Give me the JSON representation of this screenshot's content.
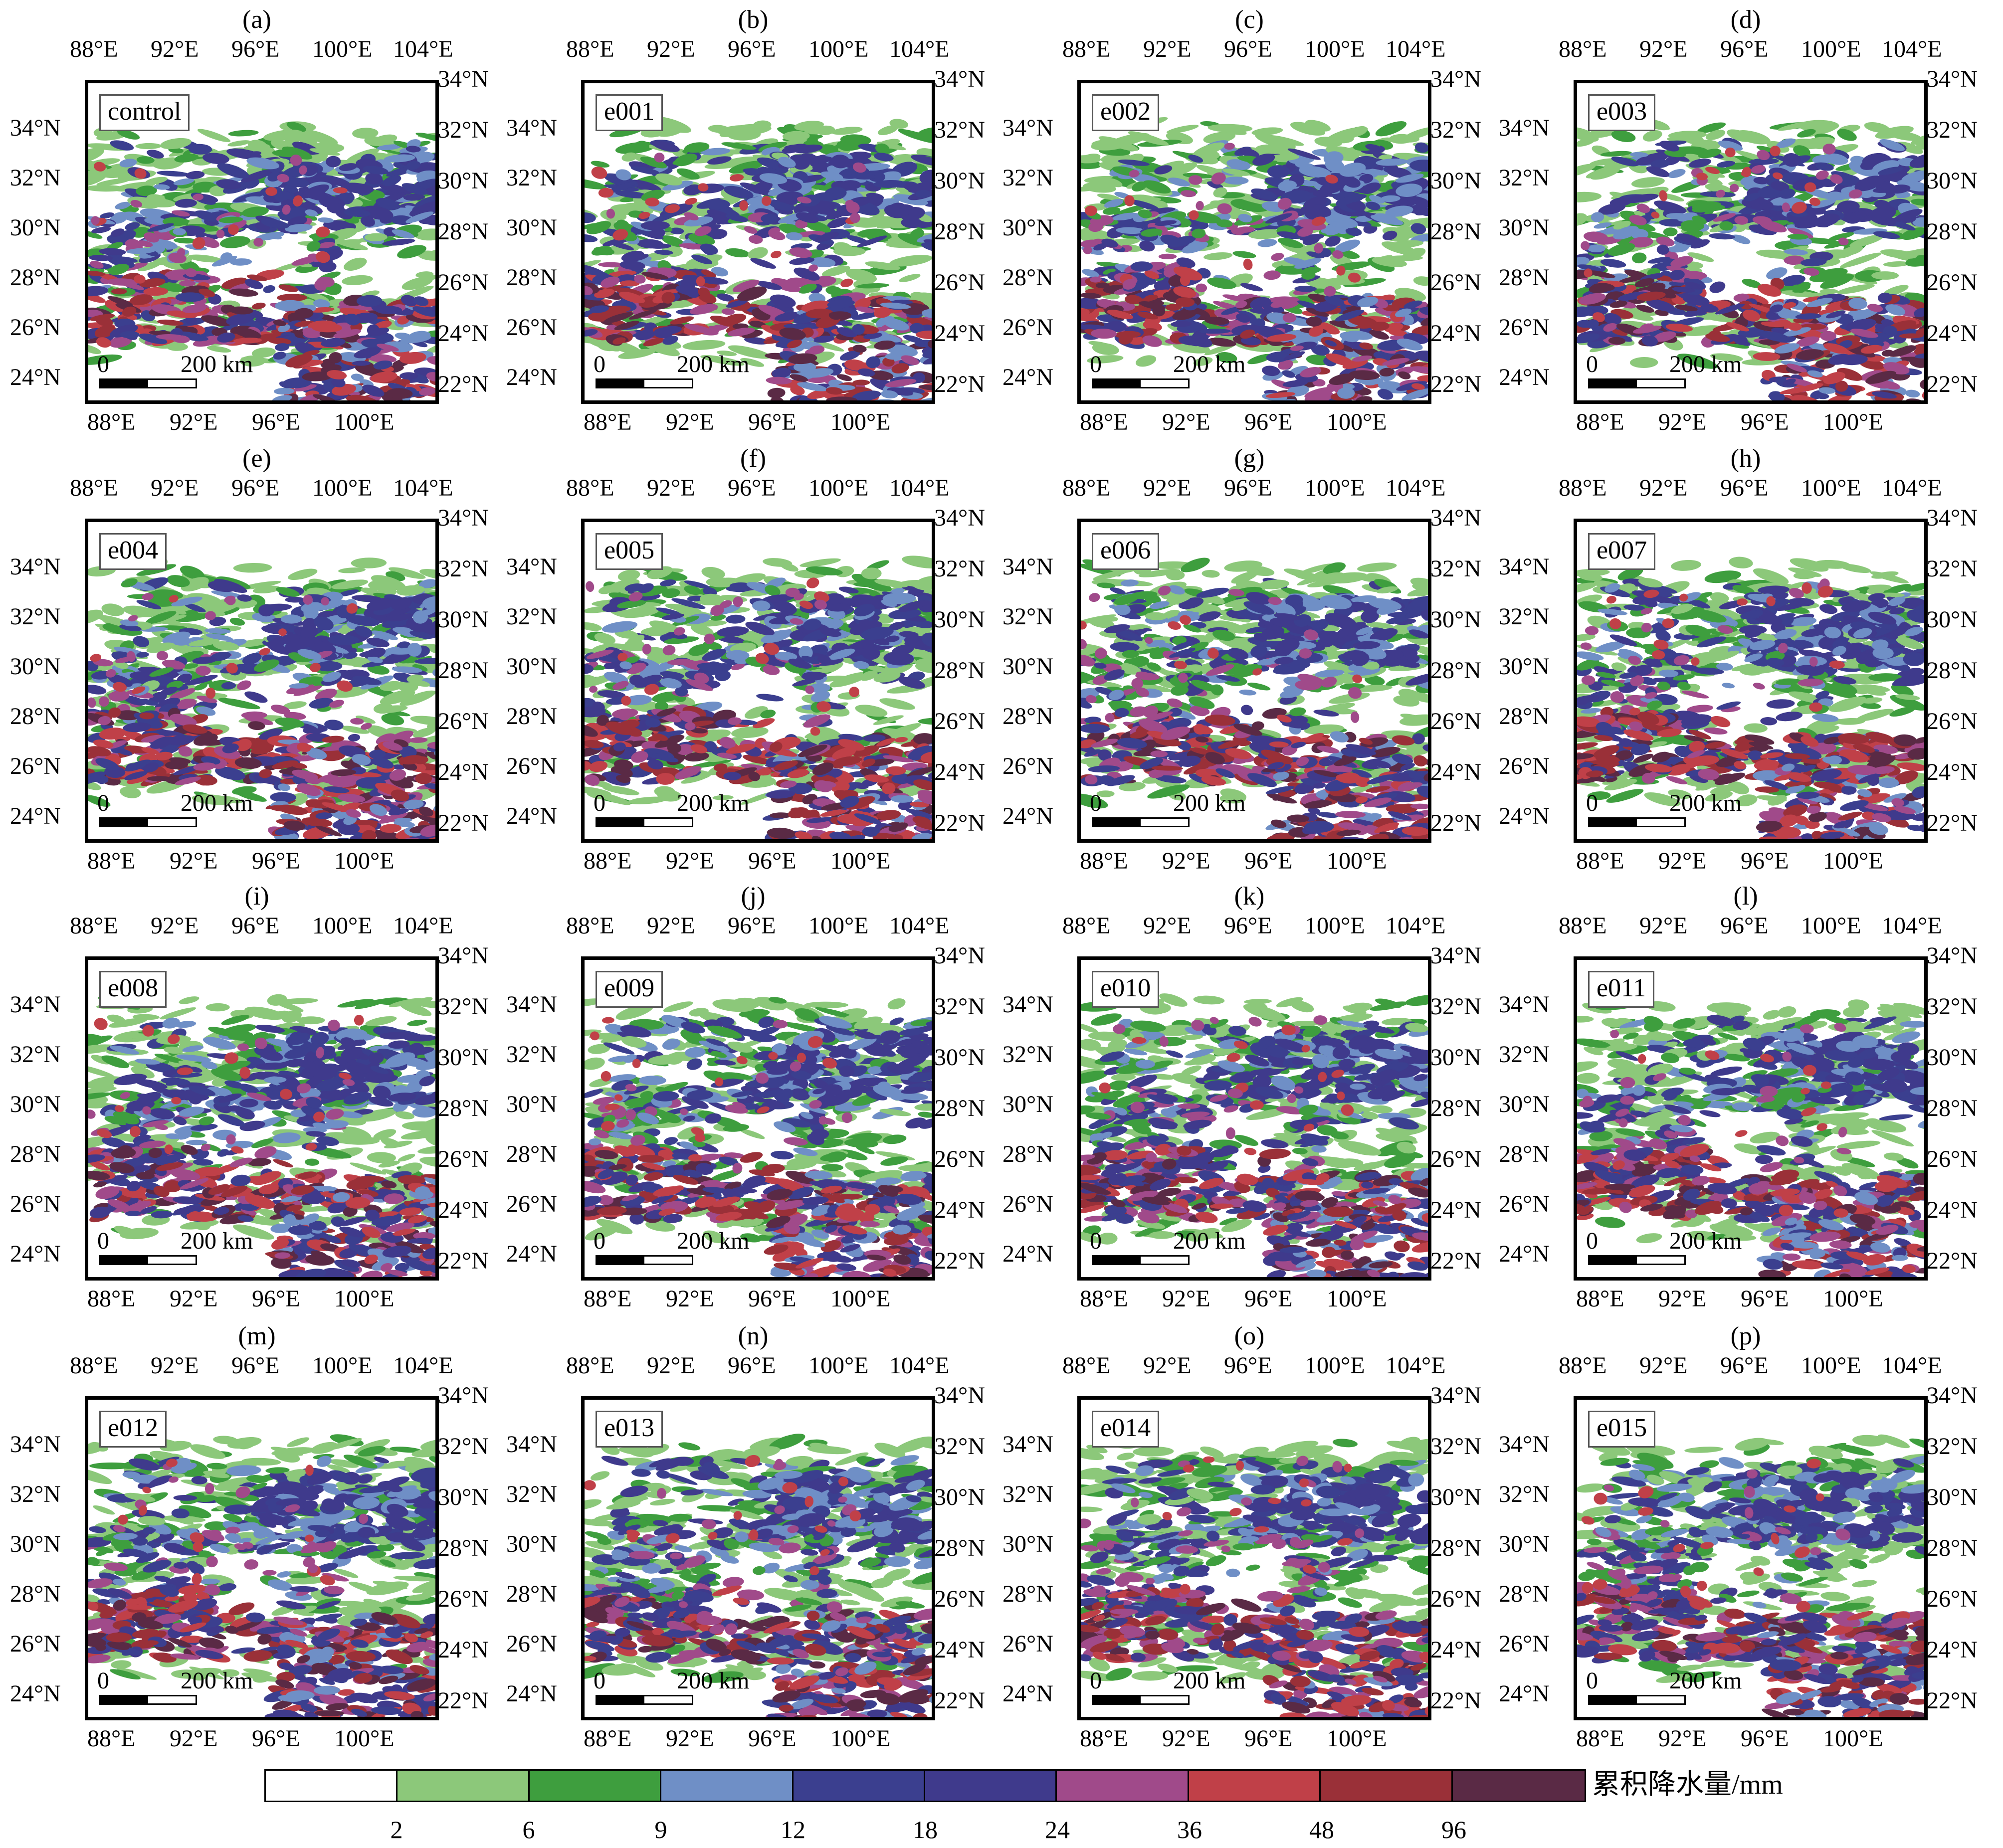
{
  "panels": [
    {
      "label": "(a)",
      "name": "control"
    },
    {
      "label": "(b)",
      "name": "e001"
    },
    {
      "label": "(c)",
      "name": "e002"
    },
    {
      "label": "(d)",
      "name": "e003"
    },
    {
      "label": "(e)",
      "name": "e004"
    },
    {
      "label": "(f)",
      "name": "e005"
    },
    {
      "label": "(g)",
      "name": "e006"
    },
    {
      "label": "(h)",
      "name": "e007"
    },
    {
      "label": "(i)",
      "name": "e008"
    },
    {
      "label": "(j)",
      "name": "e009"
    },
    {
      "label": "(k)",
      "name": "e010"
    },
    {
      "label": "(l)",
      "name": "e011"
    },
    {
      "label": "(m)",
      "name": "e012"
    },
    {
      "label": "(n)",
      "name": "e013"
    },
    {
      "label": "(o)",
      "name": "e014"
    },
    {
      "label": "(p)",
      "name": "e015"
    }
  ],
  "axes": {
    "top_ticks": [
      "88°E",
      "92°E",
      "96°E",
      "100°E",
      "104°E"
    ],
    "bottom_ticks": [
      "88°E",
      "92°E",
      "96°E",
      "100°E"
    ],
    "left_ticks": [
      "34°N",
      "32°N",
      "30°N",
      "28°N",
      "26°N",
      "24°N"
    ],
    "right_ticks": [
      "34°N",
      "32°N",
      "30°N",
      "28°N",
      "26°N",
      "24°N",
      "22°N"
    ]
  },
  "scale_bar": {
    "start": "0",
    "end": "200 km"
  },
  "legend": {
    "title": "累积降水量/mm",
    "boundaries": [
      "2",
      "6",
      "9",
      "12",
      "18",
      "24",
      "36",
      "48",
      "96"
    ],
    "colors": [
      "#ffffff",
      "#8cc87a",
      "#3e9e3e",
      "#6f8fc6",
      "#3b3f8f",
      "#3f3a8c",
      "#a04a8a",
      "#c04048",
      "#9a3038",
      "#5a2a45"
    ]
  }
}
